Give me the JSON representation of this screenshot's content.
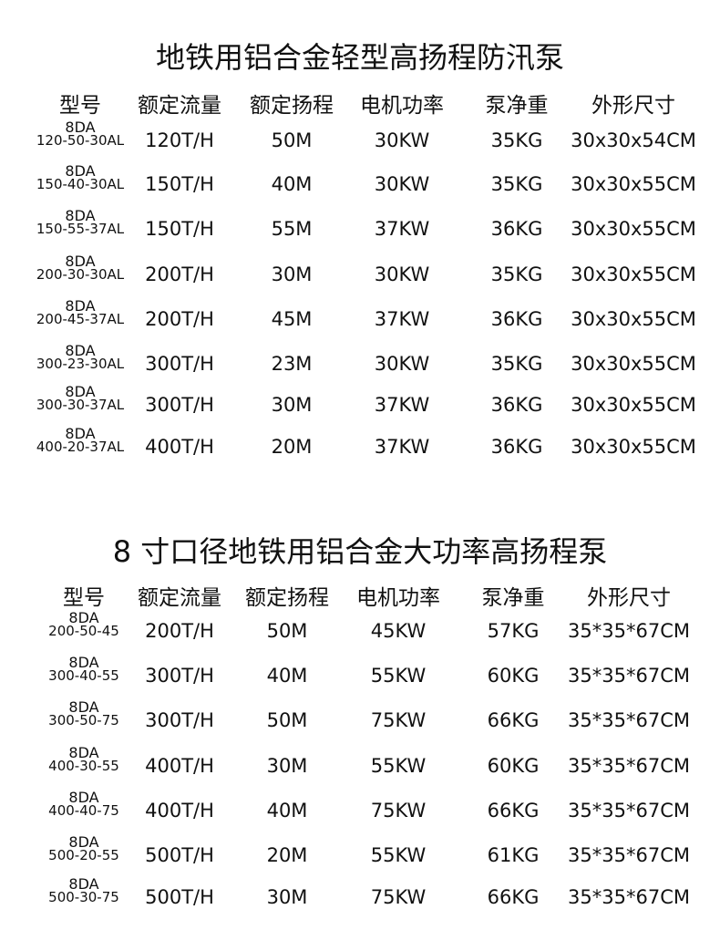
{
  "tables": [
    {
      "title": "地铁用铝合金轻型高扬程防汛泵",
      "headers": [
        "型号",
        "额定流量",
        "额定扬程",
        "电机功率",
        "泵净重",
        "外形尺寸"
      ],
      "rows": [
        {
          "model_prefix": "8DA",
          "model": "120-50-30AL",
          "flow": "120T/H",
          "head": "50M",
          "power": "30KW",
          "weight": "35KG",
          "size": "30x30x54CM"
        },
        {
          "model_prefix": "8DA",
          "model": "150-40-30AL",
          "flow": "150T/H",
          "head": "40M",
          "power": "30KW",
          "weight": "35KG",
          "size": "30x30x55CM"
        },
        {
          "model_prefix": "8DA",
          "model": "150-55-37AL",
          "flow": "150T/H",
          "head": "55M",
          "power": "37KW",
          "weight": "36KG",
          "size": "30x30x55CM"
        },
        {
          "model_prefix": "8DA",
          "model": "200-30-30AL",
          "flow": "200T/H",
          "head": "30M",
          "power": "30KW",
          "weight": "35KG",
          "size": "30x30x55CM"
        },
        {
          "model_prefix": "8DA",
          "model": "200-45-37AL",
          "flow": "200T/H",
          "head": "45M",
          "power": "37KW",
          "weight": "36KG",
          "size": "30x30x55CM"
        },
        {
          "model_prefix": "8DA",
          "model": "300-23-30AL",
          "flow": "300T/H",
          "head": "23M",
          "power": "30KW",
          "weight": "35KG",
          "size": "30x30x55CM"
        },
        {
          "model_prefix": "8DA",
          "model": "300-30-37AL",
          "flow": "300T/H",
          "head": "30M",
          "power": "37KW",
          "weight": "36KG",
          "size": "30x30x55CM"
        },
        {
          "model_prefix": "8DA",
          "model": "400-20-37AL",
          "flow": "400T/H",
          "head": "20M",
          "power": "37KW",
          "weight": "36KG",
          "size": "30x30x55CM"
        }
      ]
    },
    {
      "title": "8 寸口径地铁用铝合金大功率高扬程泵",
      "headers": [
        "型号",
        "额定流量",
        "额定扬程",
        "电机功率",
        "泵净重",
        "外形尺寸"
      ],
      "rows": [
        {
          "model_prefix": "8DA",
          "model": "200-50-45",
          "flow": "200T/H",
          "head": "50M",
          "power": "45KW",
          "weight": "57KG",
          "size": "35*35*67CM"
        },
        {
          "model_prefix": "8DA",
          "model": "300-40-55",
          "flow": "300T/H",
          "head": "40M",
          "power": "55KW",
          "weight": "60KG",
          "size": "35*35*67CM"
        },
        {
          "model_prefix": "8DA",
          "model": "300-50-75",
          "flow": "300T/H",
          "head": "50M",
          "power": "75KW",
          "weight": "66KG",
          "size": "35*35*67CM"
        },
        {
          "model_prefix": "8DA",
          "model": "400-30-55",
          "flow": "400T/H",
          "head": "30M",
          "power": "55KW",
          "weight": "60KG",
          "size": "35*35*67CM"
        },
        {
          "model_prefix": "8DA",
          "model": "400-40-75",
          "flow": "400T/H",
          "head": "40M",
          "power": "75KW",
          "weight": "66KG",
          "size": "35*35*67CM"
        },
        {
          "model_prefix": "8DA",
          "model": "500-20-55",
          "flow": "500T/H",
          "head": "20M",
          "power": "55KW",
          "weight": "61KG",
          "size": "35*35*67CM"
        },
        {
          "model_prefix": "8DA",
          "model": "500-30-75",
          "flow": "500T/H",
          "head": "30M",
          "power": "75KW",
          "weight": "66KG",
          "size": "35*35*67CM"
        }
      ]
    }
  ]
}
